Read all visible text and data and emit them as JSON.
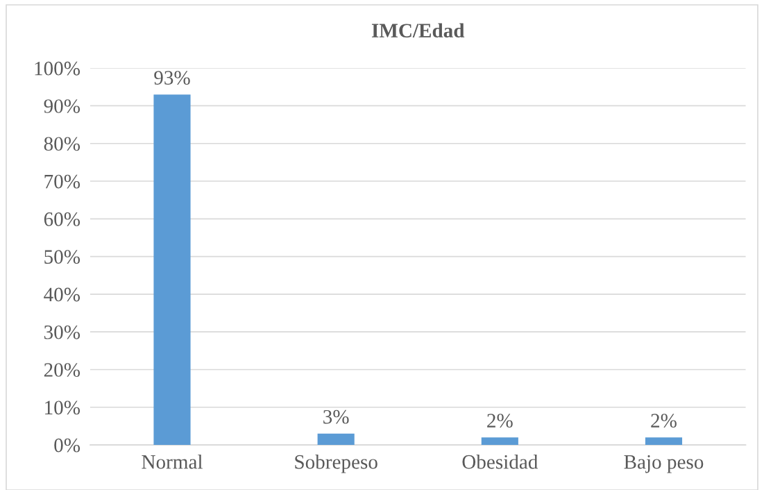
{
  "chart_data": {
    "type": "bar",
    "title": "IMC/Edad",
    "categories": [
      "Normal",
      "Sobrepeso",
      "Obesidad",
      "Bajo peso"
    ],
    "values": [
      93,
      3,
      2,
      2
    ],
    "color": "#5b9bd5",
    "value_labels": [
      "93%",
      "3%",
      "2%",
      "2%"
    ],
    "ylim": [
      0,
      100
    ],
    "yticks": [
      {
        "value": 0,
        "label": "0%"
      },
      {
        "value": 10,
        "label": "10%"
      },
      {
        "value": 20,
        "label": "20%"
      },
      {
        "value": 30,
        "label": "30%"
      },
      {
        "value": 40,
        "label": "40%"
      },
      {
        "value": 50,
        "label": "50%"
      },
      {
        "value": 60,
        "label": "60%"
      },
      {
        "value": 70,
        "label": "70%"
      },
      {
        "value": 80,
        "label": "80%"
      },
      {
        "value": 90,
        "label": "90%"
      },
      {
        "value": 100,
        "label": "100%"
      }
    ],
    "grid": "y",
    "legend": false
  }
}
